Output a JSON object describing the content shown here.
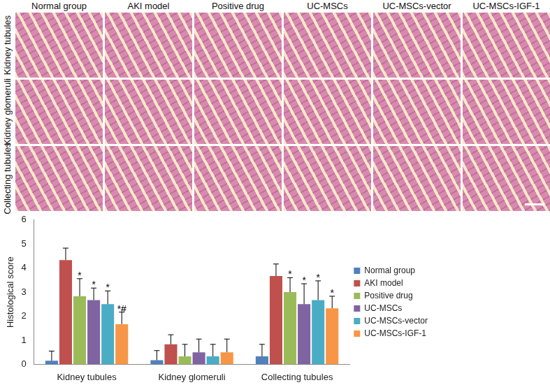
{
  "image_grid": {
    "columns": [
      "Normal group",
      "AKI model",
      "Positive drug",
      "UC-MSCs",
      "UC-MSCs-vector",
      "UC-MSCs-IGF-1"
    ],
    "rows": [
      "Kidney tubules",
      "Kidney glomeruli",
      "Collecting tubules"
    ]
  },
  "chart_data": {
    "type": "bar",
    "y_label": "Histological score",
    "categories": [
      "Kidney tubules",
      "Kidney glomeruli",
      "Collecting tubules"
    ],
    "series": [
      {
        "name": "Normal group",
        "color": "#4f81bd",
        "values": [
          0.15,
          0.17,
          0.33
        ],
        "errors": [
          0.4,
          0.4,
          0.5
        ],
        "annotations": [
          null,
          null,
          null
        ]
      },
      {
        "name": "AKI model",
        "color": "#c0504d",
        "values": [
          4.33,
          0.83,
          3.67
        ],
        "errors": [
          0.5,
          0.4,
          0.5
        ],
        "annotations": [
          null,
          null,
          null
        ]
      },
      {
        "name": "Positive drug",
        "color": "#9bbb59",
        "values": [
          2.83,
          0.33,
          3.0
        ],
        "errors": [
          0.73,
          0.5,
          0.6
        ],
        "annotations": [
          "*",
          null,
          "*"
        ]
      },
      {
        "name": "UC-MSCs",
        "color": "#8064a2",
        "values": [
          2.67,
          0.5,
          2.5
        ],
        "errors": [
          0.5,
          0.55,
          0.85
        ],
        "annotations": [
          "*",
          null,
          "*"
        ]
      },
      {
        "name": "UC-MSCs-vector",
        "color": "#4bacc6",
        "values": [
          2.5,
          0.33,
          2.67
        ],
        "errors": [
          0.55,
          0.5,
          0.8
        ],
        "annotations": [
          "*",
          null,
          "*"
        ]
      },
      {
        "name": "UC-MSCs-IGF-1",
        "color": "#f79646",
        "values": [
          1.67,
          0.5,
          2.33
        ],
        "errors": [
          0.5,
          0.55,
          0.5
        ],
        "annotations": [
          "*#",
          null,
          "*"
        ]
      }
    ],
    "ylim": [
      0,
      6
    ],
    "yticks": [
      0,
      1,
      2,
      3,
      4,
      5,
      6
    ],
    "grid": false,
    "legend": "right"
  }
}
